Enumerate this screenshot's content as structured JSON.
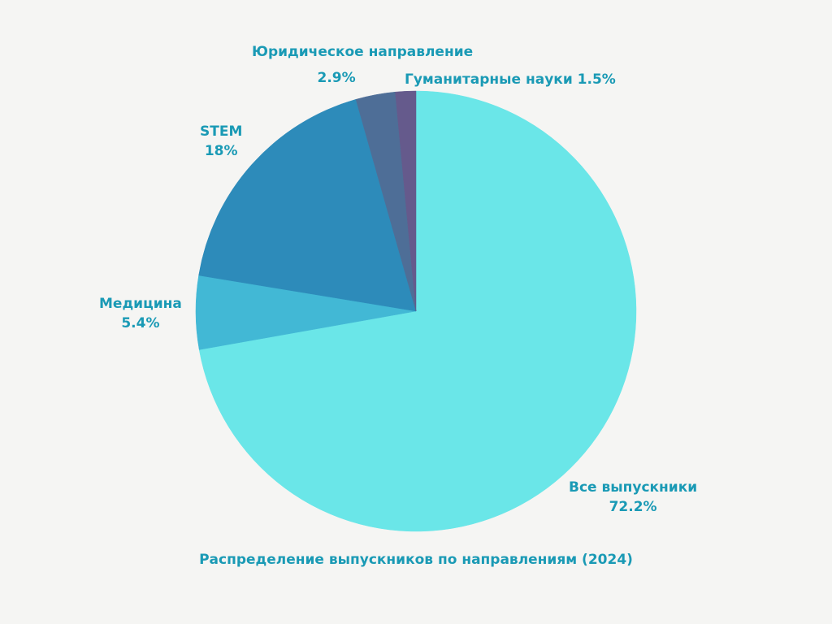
{
  "chart_data": {
    "type": "pie",
    "title": "Распределение выпускников по направлениям (2024)",
    "start_angle": "top",
    "direction": "clockwise",
    "slices": [
      {
        "label": "Все выпускники",
        "value": 72.2,
        "value_label": "72.2%",
        "color": "#6ae6e8"
      },
      {
        "label": "Медицина",
        "value": 5.4,
        "value_label": "5.4%",
        "color": "#42b8d5"
      },
      {
        "label": "STEM",
        "value": 18,
        "value_label": "18%",
        "color": "#2d8bba"
      },
      {
        "label": "Юридическое направление",
        "value": 2.9,
        "value_label": "2.9%",
        "color": "#4e6e97"
      },
      {
        "label": "Гуманитарные науки",
        "value": 1.5,
        "value_label": "1.5%",
        "color": "#655a8c"
      }
    ],
    "label_color": "#1a9ab5",
    "background": "#f5f5f3"
  }
}
